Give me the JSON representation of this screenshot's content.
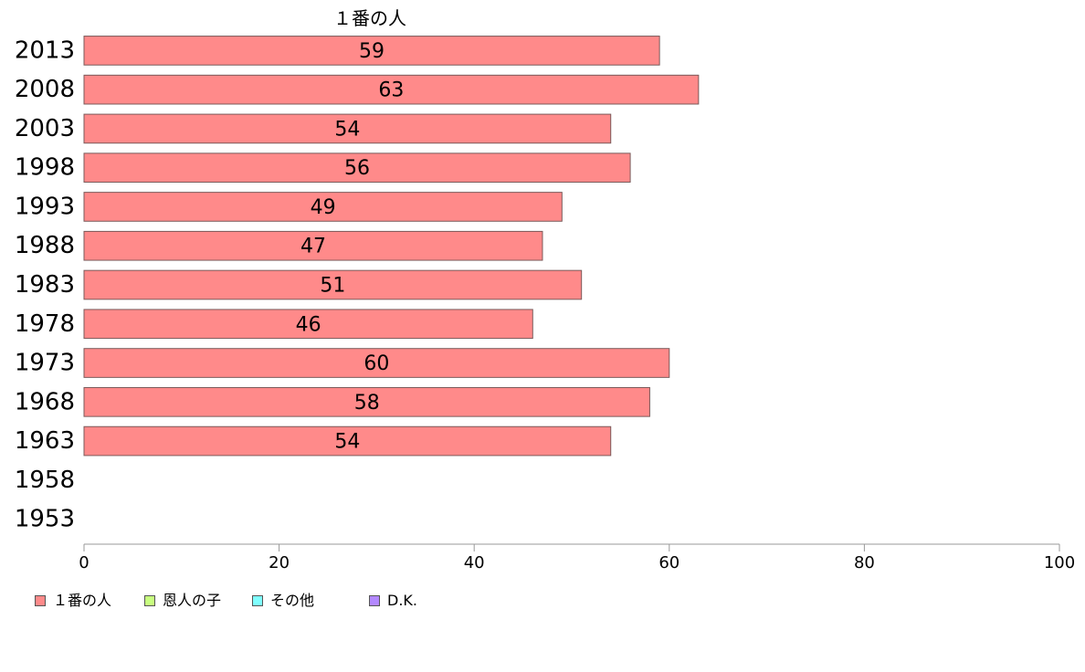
{
  "chart_data": {
    "type": "bar",
    "orientation": "horizontal",
    "title": "",
    "categories": [
      "2013",
      "2008",
      "2003",
      "1998",
      "1993",
      "1988",
      "1983",
      "1978",
      "1973",
      "1968",
      "1963",
      "1958",
      "1953"
    ],
    "series": [
      {
        "name": "１番の人",
        "color": "#ff8a8a",
        "values": [
          59,
          63,
          54,
          56,
          49,
          47,
          51,
          46,
          60,
          58,
          54,
          null,
          null
        ],
        "labels": [
          "59",
          "63",
          "54",
          "56",
          "49",
          "47",
          "51",
          "46",
          "60",
          "58",
          "54",
          "",
          ""
        ]
      },
      {
        "name": "恩人の子",
        "color": "#c8ff80",
        "values": [
          null,
          null,
          null,
          null,
          null,
          null,
          null,
          null,
          null,
          null,
          null,
          null,
          null
        ]
      },
      {
        "name": "その他",
        "color": "#80ffff",
        "values": [
          null,
          null,
          null,
          null,
          null,
          null,
          null,
          null,
          null,
          null,
          null,
          null,
          null
        ]
      },
      {
        "name": "D.K.",
        "color": "#b388ff",
        "values": [
          null,
          null,
          null,
          null,
          null,
          null,
          null,
          null,
          null,
          null,
          null,
          null,
          null
        ]
      }
    ],
    "xlim": [
      0,
      100
    ],
    "xticks": [
      "0",
      "20",
      "40",
      "60",
      "80",
      "100"
    ],
    "xlabel": "",
    "ylabel": "",
    "grid": false,
    "legend": "bottom-left",
    "series_title_shown": "１番の人",
    "bar_border_color": "#7a5a5a",
    "axis_color": "#999999"
  }
}
